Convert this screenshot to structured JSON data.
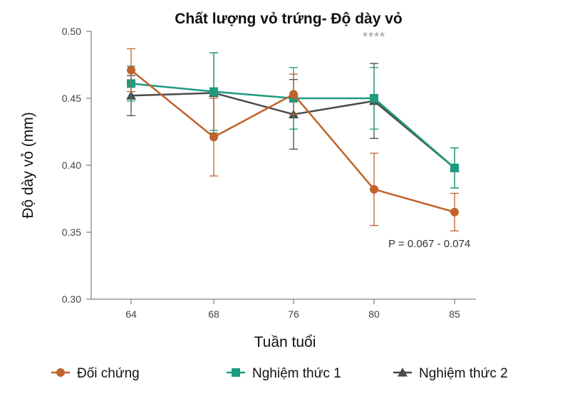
{
  "chart_data": {
    "type": "line",
    "title": "Chất lượng vỏ trứng- Độ dày vỏ",
    "xlabel": "Tuần tuổi",
    "ylabel": "Độ dày vỏ (mm)",
    "categories": [
      "64",
      "68",
      "76",
      "80",
      "85"
    ],
    "ylim": [
      0.3,
      0.5
    ],
    "yticks": [
      "0.30",
      "0.35",
      "0.40",
      "0.45",
      "0.50"
    ],
    "grid": false,
    "legend_position": "bottom",
    "series": [
      {
        "name": "Đối chứng",
        "color": "#c0622a",
        "marker": "circle",
        "values": [
          0.471,
          0.421,
          0.453,
          0.382,
          0.365
        ],
        "error": [
          0.016,
          0.029,
          0.015,
          0.027,
          0.014
        ]
      },
      {
        "name": "Nghiệm thức 1",
        "color": "#1e9a7e",
        "marker": "square",
        "values": [
          0.461,
          0.455,
          0.45,
          0.45,
          0.398
        ],
        "error": [
          0.013,
          0.029,
          0.023,
          0.023,
          0.015
        ]
      },
      {
        "name": "Nghiệm thức 2",
        "color": "#4a4a4a",
        "marker": "triangle",
        "values": [
          0.452,
          0.454,
          0.438,
          0.448,
          0.398
        ],
        "error": [
          0.015,
          0.03,
          0.026,
          0.028,
          0.015
        ]
      }
    ],
    "annotations": {
      "significance": "****",
      "p_value": "P = 0.067 - 0.074"
    }
  }
}
